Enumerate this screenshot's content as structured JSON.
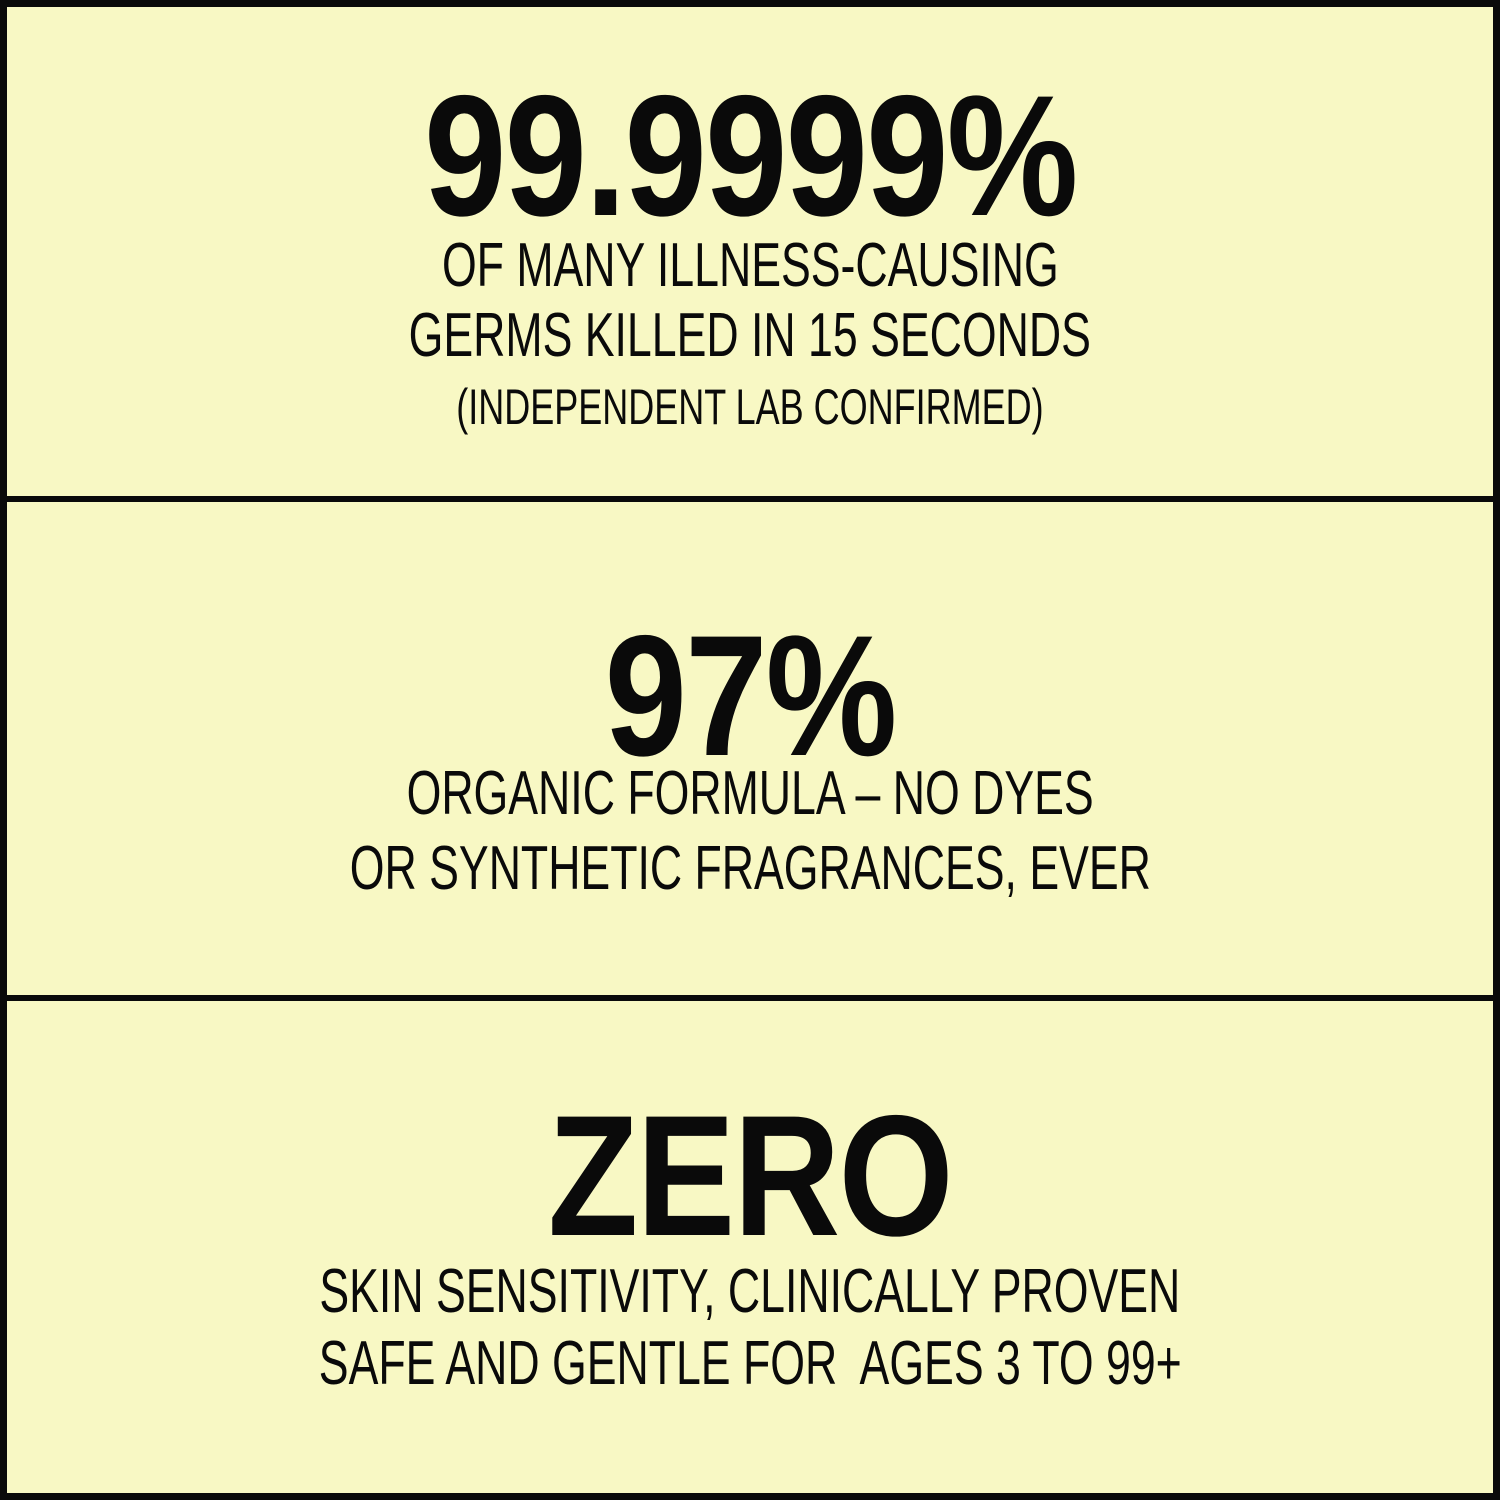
{
  "colors": {
    "background": "#f8f8c4",
    "text": "#0a0a0a",
    "border": "#0a0a0a"
  },
  "panels": [
    {
      "headline": "99.9999%",
      "lines": [
        "OF MANY ILLNESS-CAUSING",
        "GERMS KILLED IN 15 SECONDS",
        "(INDEPENDENT LAB CONFIRMED)"
      ]
    },
    {
      "headline": "97%",
      "lines": [
        "ORGANIC FORMULA – NO DYES",
        "OR SYNTHETIC FRAGRANCES, EVER"
      ]
    },
    {
      "headline": "ZERO",
      "lines": [
        "SKIN SENSITIVITY, CLINICALLY PROVEN",
        "SAFE AND GENTLE FOR  AGES 3 TO 99+"
      ]
    }
  ]
}
